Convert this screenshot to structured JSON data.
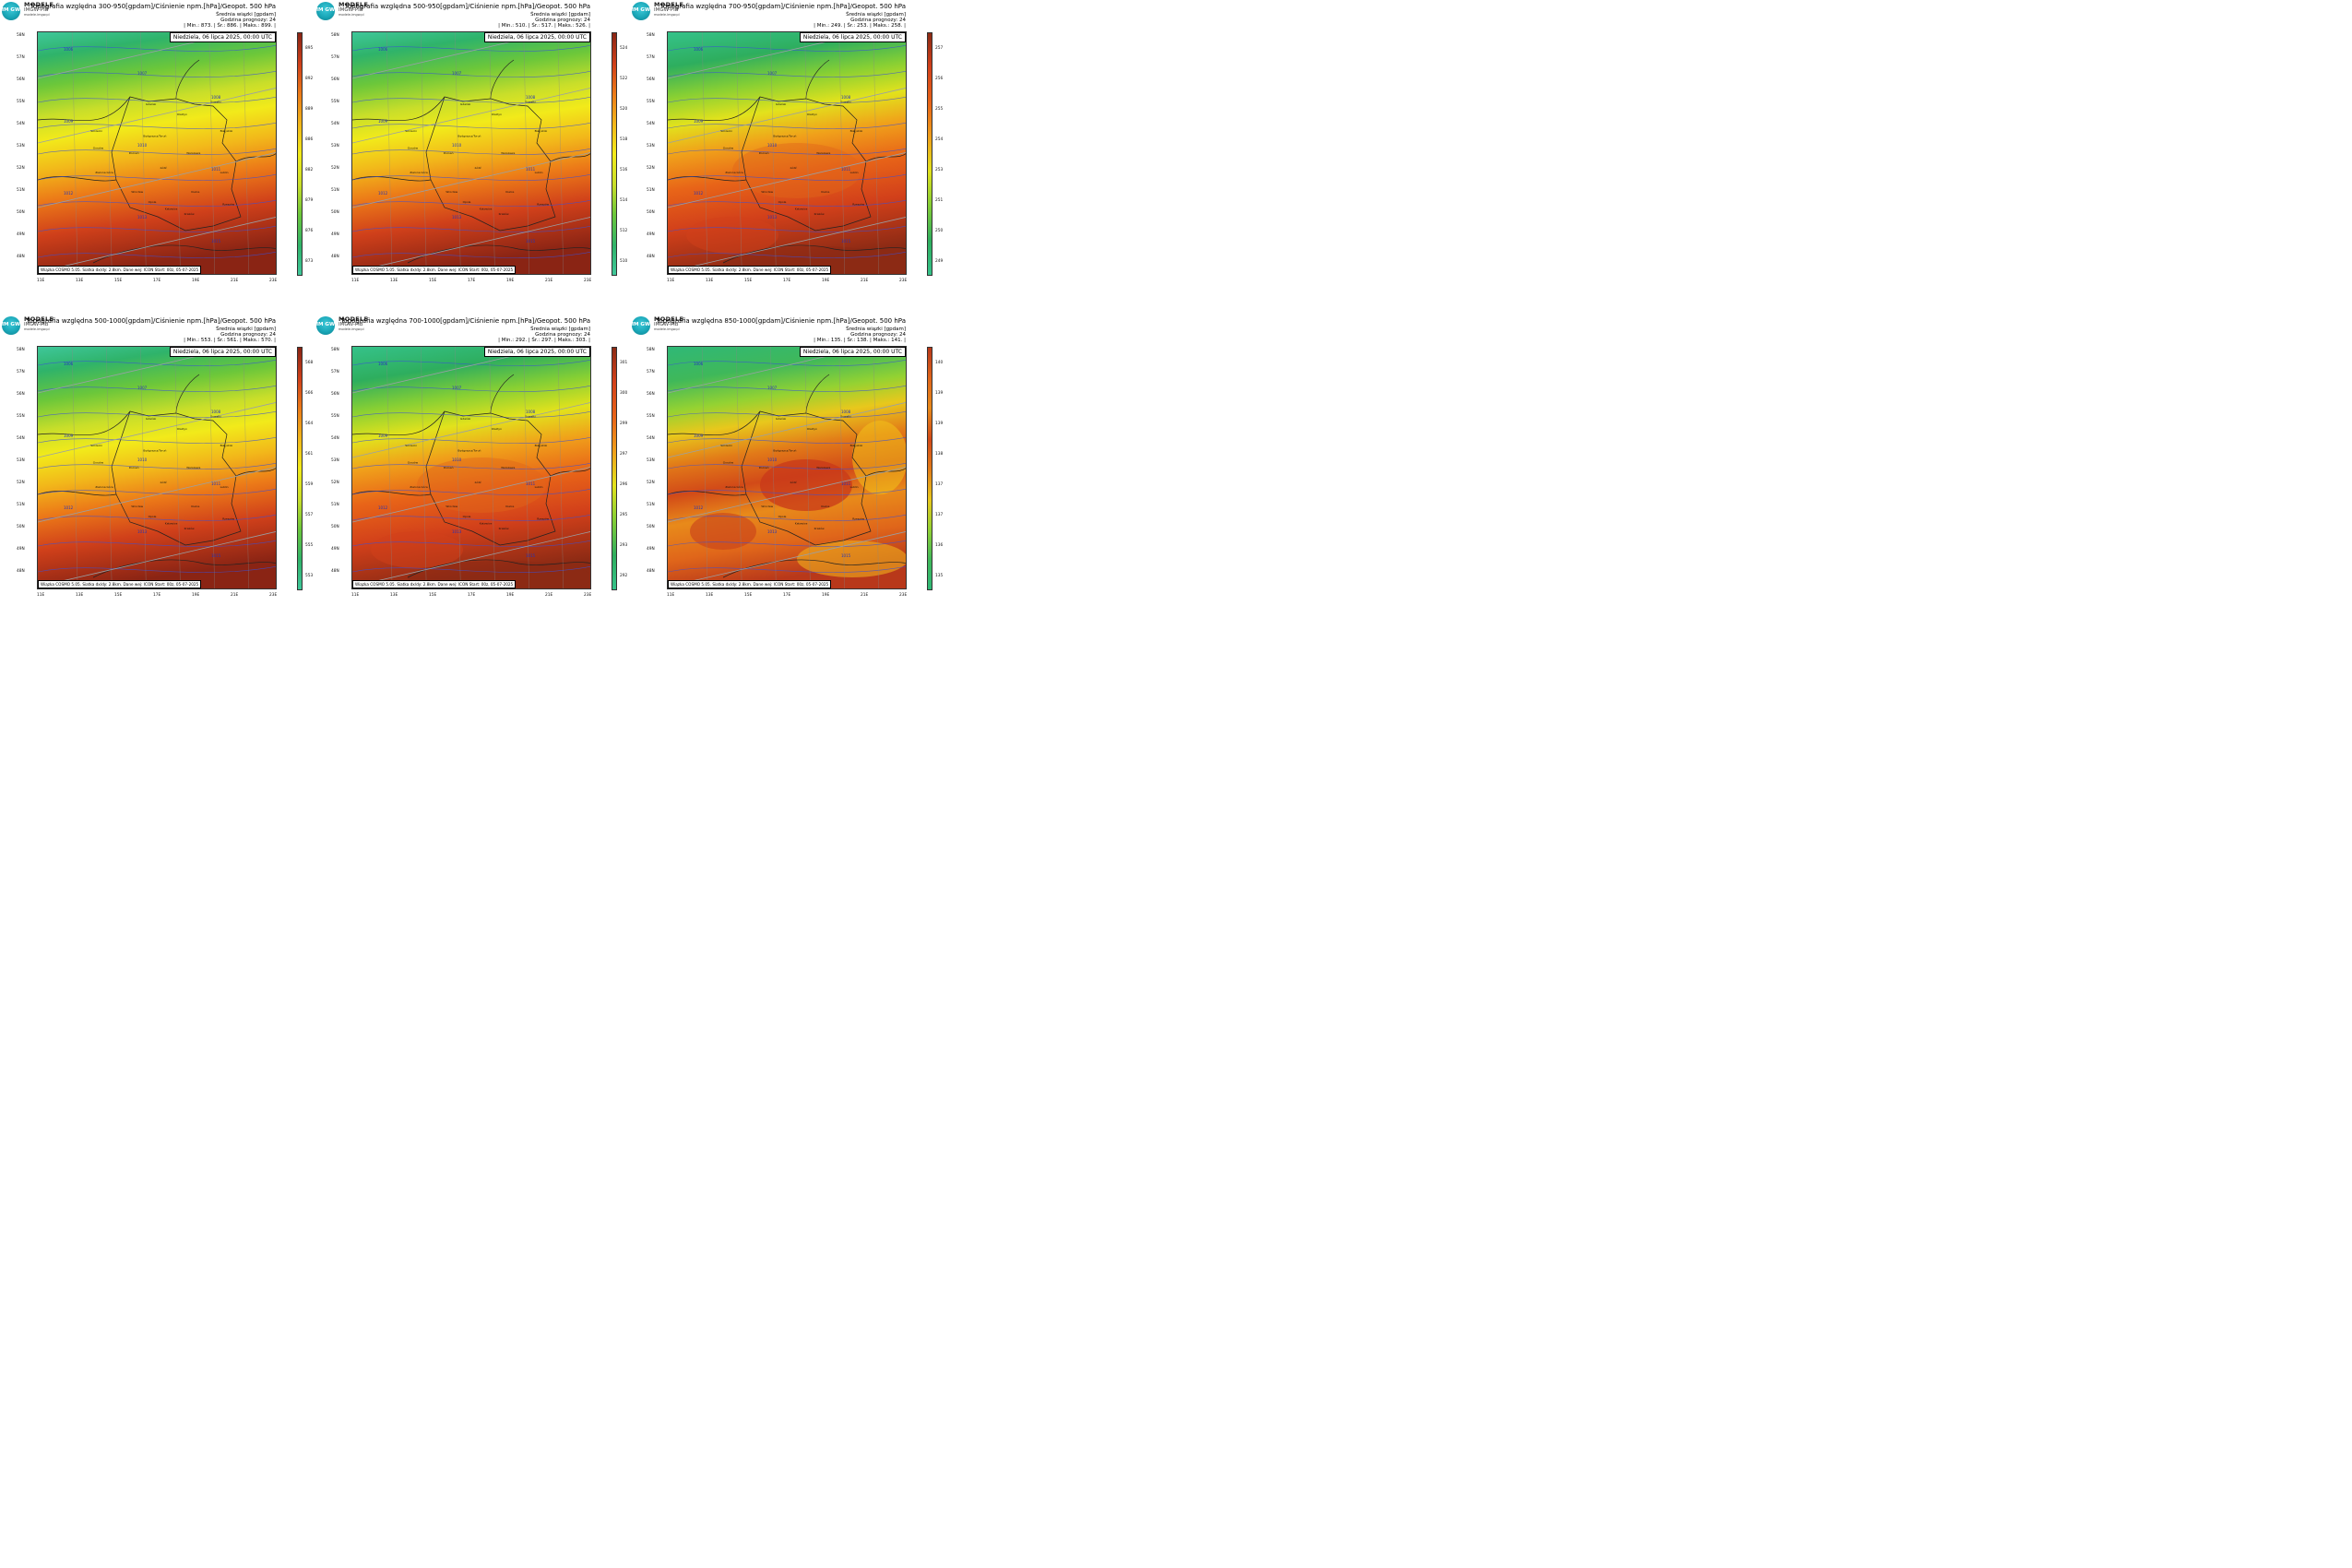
{
  "logo": {
    "brand": "MODELE",
    "brand_sub": "IMGW-PIB",
    "site": "modele.imgw.pl",
    "badge": "IM GW"
  },
  "common": {
    "subtitle": "Średnia wiązki [gpdam]",
    "forecast_hour": "Godzina prognozy: 24",
    "date": "Niedziela, 06 lipca 2025, 00:00 UTC",
    "footer": "Wiązka COSMO 5.05. Siatka dx/dy: 2.8km. Dane wej: ICON Start: 00z, 05-07-2025",
    "lat_labels": [
      "58N",
      "57N",
      "56N",
      "55N",
      "54N",
      "53N",
      "52N",
      "51N",
      "50N",
      "49N",
      "48N"
    ],
    "lon_labels": [
      "11E",
      "13E",
      "15E",
      "17E",
      "19E",
      "21E",
      "23E"
    ],
    "cities": [
      "Gdańsk",
      "Olsztyn",
      "Suwałki",
      "Szczecin",
      "Bydgoszcz/Toruń",
      "Białystok",
      "Gorzów",
      "Poznań",
      "Warszawa",
      "Zielona Góra",
      "Łódź",
      "Lublin",
      "Wrocław",
      "Kielce",
      "Opole",
      "Katowice",
      "Kraków",
      "Rzeszów"
    ],
    "isobars": [
      "1006",
      "1007",
      "1008",
      "1009",
      "1010",
      "1011",
      "1012",
      "1013",
      "1015"
    ]
  },
  "panels": [
    {
      "title": "Topografia względna 300-950[gpdam]/Ciśnienie npm.[hPa]/Geopot. 500 hPa",
      "stats": "| Min.: 873. | Śr.: 886. | Maks.: 899. |",
      "ticks": [
        "895",
        "892",
        "889",
        "886",
        "882",
        "879",
        "876",
        "873"
      ],
      "pattern": "uniform"
    },
    {
      "title": "Topografia względna 500-950[gpdam]/Ciśnienie npm.[hPa]/Geopot. 500 hPa",
      "stats": "| Min.: 510. | Śr.: 517. | Maks.: 526. |",
      "ticks": [
        "524",
        "522",
        "520",
        "518",
        "516",
        "514",
        "512",
        "510"
      ],
      "pattern": "uniform"
    },
    {
      "title": "Topografia względna 700-950[gpdam]/Ciśnienie npm.[hPa]/Geopot. 500 hPa",
      "stats": "| Min.: 249. | Śr.: 253. | Maks.: 258. |",
      "ticks": [
        "257",
        "256",
        "255",
        "254",
        "253",
        "251",
        "250",
        "249"
      ],
      "pattern": "warm"
    },
    {
      "title": "Topografia względna 500-1000[gpdam]/Ciśnienie npm.[hPa]/Geopot. 500 hPa",
      "stats": "| Min.: 553. | Śr.: 561. | Maks.: 570. |",
      "ticks": [
        "568",
        "566",
        "564",
        "561",
        "559",
        "557",
        "555",
        "553"
      ],
      "pattern": "uniform"
    },
    {
      "title": "Topografia względna 700-1000[gpdam]/Ciśnienie npm.[hPa]/Geopot. 500 hPa",
      "stats": "| Min.: 292. | Śr.: 297. | Maks.: 303. |",
      "ticks": [
        "301",
        "300",
        "299",
        "297",
        "296",
        "295",
        "293",
        "292"
      ],
      "pattern": "warm"
    },
    {
      "title": "Topografia względna 850-1000[gpdam]/Ciśnienie npm.[hPa]/Geopot. 500 hPa",
      "stats": "| Min.: 135. | Śr.: 138. | Maks.: 141. |",
      "ticks": [
        "140",
        "139",
        "139",
        "138",
        "137",
        "137",
        "136",
        "135"
      ],
      "pattern": "patchy"
    }
  ]
}
